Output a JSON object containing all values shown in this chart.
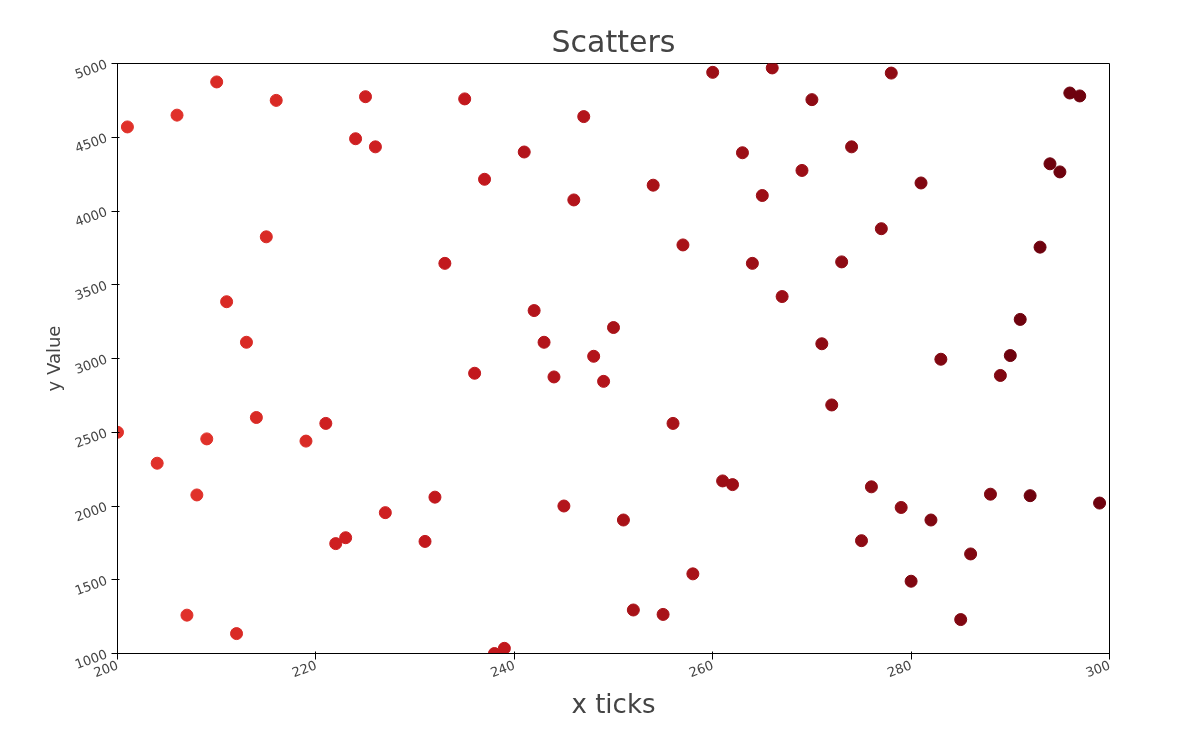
{
  "chart_data": {
    "type": "scatter",
    "title": "Scatters",
    "xlabel": "x ticks",
    "ylabel": "y Value",
    "xlim": [
      200,
      300
    ],
    "xticks": [
      200,
      220,
      240,
      260,
      280,
      300
    ],
    "ylim": [
      1000,
      5000
    ],
    "yticks": [
      1000,
      1500,
      2000,
      2500,
      3000,
      3500,
      4000,
      4500,
      5000
    ],
    "grid": false,
    "marker": "circle",
    "series": [
      {
        "x": [
          200,
          201,
          204,
          206,
          207,
          208,
          209,
          210,
          211,
          212,
          213,
          214,
          215,
          216,
          219,
          221,
          222,
          223,
          224,
          225,
          226,
          227,
          231,
          232,
          233,
          235,
          236,
          237,
          238,
          239,
          241,
          242,
          243,
          244,
          245,
          246,
          247,
          248,
          249,
          250,
          251,
          252,
          254,
          255,
          256,
          257,
          258,
          260,
          261,
          262,
          263,
          264,
          265,
          266,
          267,
          269,
          270,
          271,
          272,
          273,
          274,
          275,
          276,
          277,
          278,
          279,
          280,
          281,
          282,
          283,
          285,
          286,
          288,
          289,
          290,
          291,
          292,
          293,
          294,
          295,
          296,
          297,
          299
        ],
        "values": [
          2500,
          4570,
          2290,
          4650,
          1260,
          2075,
          2455,
          4875,
          3385,
          1135,
          3110,
          2600,
          3825,
          4750,
          2440,
          2560,
          1745,
          1785,
          4490,
          4775,
          4435,
          1955,
          1760,
          2060,
          3645,
          4760,
          2900,
          4215,
          1000,
          1035,
          4400,
          3325,
          3110,
          2875,
          2000,
          4075,
          4640,
          3015,
          2845,
          3210,
          1905,
          1295,
          4175,
          1265,
          2560,
          3770,
          1540,
          4940,
          2170,
          2145,
          4395,
          3645,
          4105,
          4970,
          3420,
          4275,
          4755,
          3100,
          2685,
          3655,
          4435,
          1765,
          2130,
          3880,
          4935,
          1990,
          1490,
          4190,
          1905,
          2995,
          1230,
          1675,
          2080,
          2885,
          3020,
          3265,
          2070,
          3755,
          4320,
          4265,
          4800,
          4780,
          2020
        ],
        "colors": [
          "#e0312a",
          "#e0312a",
          "#e0312a",
          "#e0312a",
          "#e0312a",
          "#e0312a",
          "#e0312a",
          "#d92a25",
          "#d92a25",
          "#d92a25",
          "#d92a25",
          "#d92a25",
          "#d92a25",
          "#d92a25",
          "#d92a25",
          "#ce1f21",
          "#ce1f21",
          "#ce1f21",
          "#ce1f21",
          "#ce1f21",
          "#ce1f21",
          "#ce1f21",
          "#c2181d",
          "#c2181d",
          "#c2181d",
          "#c2181d",
          "#c2181d",
          "#c2181d",
          "#c2181d",
          "#c2181d",
          "#b3141b",
          "#b3141b",
          "#b3141b",
          "#b3141b",
          "#b3141b",
          "#b3141b",
          "#b3141b",
          "#b3141b",
          "#b3141b",
          "#a81218",
          "#a81218",
          "#a81218",
          "#a81218",
          "#a81218",
          "#a81218",
          "#a81218",
          "#a81218",
          "#9c0e16",
          "#9c0e16",
          "#9c0e16",
          "#9c0e16",
          "#9c0e16",
          "#9c0e16",
          "#9c0e16",
          "#9c0e16",
          "#9c0e16",
          "#8e0b14",
          "#8e0b14",
          "#8e0b14",
          "#8e0b14",
          "#8e0b14",
          "#8e0b14",
          "#8e0b14",
          "#8e0b14",
          "#8e0b14",
          "#8e0b14",
          "#800711",
          "#800711",
          "#800711",
          "#800711",
          "#800711",
          "#800711",
          "#800711",
          "#800711",
          "#6e020e",
          "#6e020e",
          "#6e020e",
          "#6e020e",
          "#6e020e",
          "#6e020e",
          "#6e020e",
          "#6e020e",
          "#6e020e"
        ]
      }
    ]
  }
}
